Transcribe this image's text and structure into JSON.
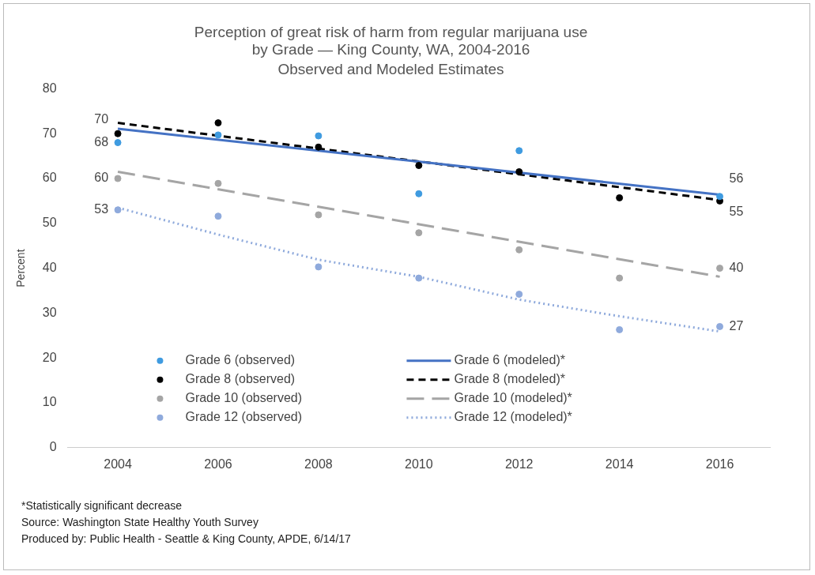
{
  "chart_data": {
    "type": "line",
    "title": "Perception of great risk of harm from regular marijuana use\nby Grade — King County, WA, 2004-2016",
    "subtitle": "Observed and Modeled Estimates",
    "ylabel": "Percent",
    "categories": [
      "2004",
      "2006",
      "2008",
      "2010",
      "2012",
      "2014",
      "2016"
    ],
    "ylim": [
      0,
      80
    ],
    "yticks": [
      0,
      10,
      20,
      30,
      40,
      50,
      60,
      70,
      80
    ],
    "grid": false,
    "legend": "bottom",
    "series": [
      {
        "name": "Grade 6 (observed)",
        "type": "scatter",
        "marker": "circle",
        "color": "#3f9be0",
        "values": [
          68,
          69.7,
          69.5,
          56.6,
          66.2,
          null,
          56
        ],
        "value_labels": [
          "68",
          null,
          null,
          null,
          null,
          null,
          "56"
        ]
      },
      {
        "name": "Grade 8 (observed)",
        "type": "scatter",
        "marker": "circle",
        "color": "#000000",
        "values": [
          70,
          72.4,
          67.0,
          62.9,
          61.5,
          55.7,
          55
        ],
        "value_labels": [
          "70",
          null,
          null,
          null,
          null,
          null,
          "55"
        ]
      },
      {
        "name": "Grade 10 (observed)",
        "type": "scatter",
        "marker": "circle",
        "color": "#a5a5a5",
        "values": [
          60,
          58.9,
          51.9,
          47.9,
          44.1,
          37.8,
          40
        ],
        "value_labels": [
          "60",
          null,
          null,
          null,
          null,
          null,
          "40"
        ]
      },
      {
        "name": "Grade 12 (observed)",
        "type": "scatter",
        "marker": "circle",
        "color": "#8faadc",
        "values": [
          53,
          51.6,
          40.3,
          37.8,
          34.2,
          26.3,
          27
        ],
        "value_labels": [
          "53",
          null,
          null,
          null,
          null,
          null,
          "27"
        ]
      },
      {
        "name": "Grade 6 (modeled)*",
        "type": "line",
        "marker": "none",
        "line_style": "solid",
        "color": "#4472c4",
        "values": [
          71.1,
          null,
          null,
          null,
          null,
          null,
          56.4
        ]
      },
      {
        "name": "Grade 8 (modeled)*",
        "type": "line",
        "marker": "none",
        "line_style": "dashed",
        "color": "#000000",
        "values": [
          72.4,
          null,
          null,
          null,
          null,
          null,
          55.2
        ]
      },
      {
        "name": "Grade 10 (modeled)*",
        "type": "line",
        "marker": "none",
        "line_style": "dashed",
        "color": "#a5a5a5",
        "values": [
          61.5,
          null,
          null,
          null,
          null,
          null,
          38.1
        ]
      },
      {
        "name": "Grade 12 (modeled)*",
        "type": "line",
        "marker": "none",
        "line_style": "dotted",
        "color": "#8faadc",
        "values": [
          53.5,
          47.5,
          41.9,
          38.1,
          33.0,
          29.3,
          25.9
        ]
      }
    ],
    "annotations": [
      "*Statistically significant decrease",
      "Source: Washington State Healthy Youth Survey",
      "Produced by: Public Health - Seattle & King County, APDE, 6/14/17"
    ]
  }
}
